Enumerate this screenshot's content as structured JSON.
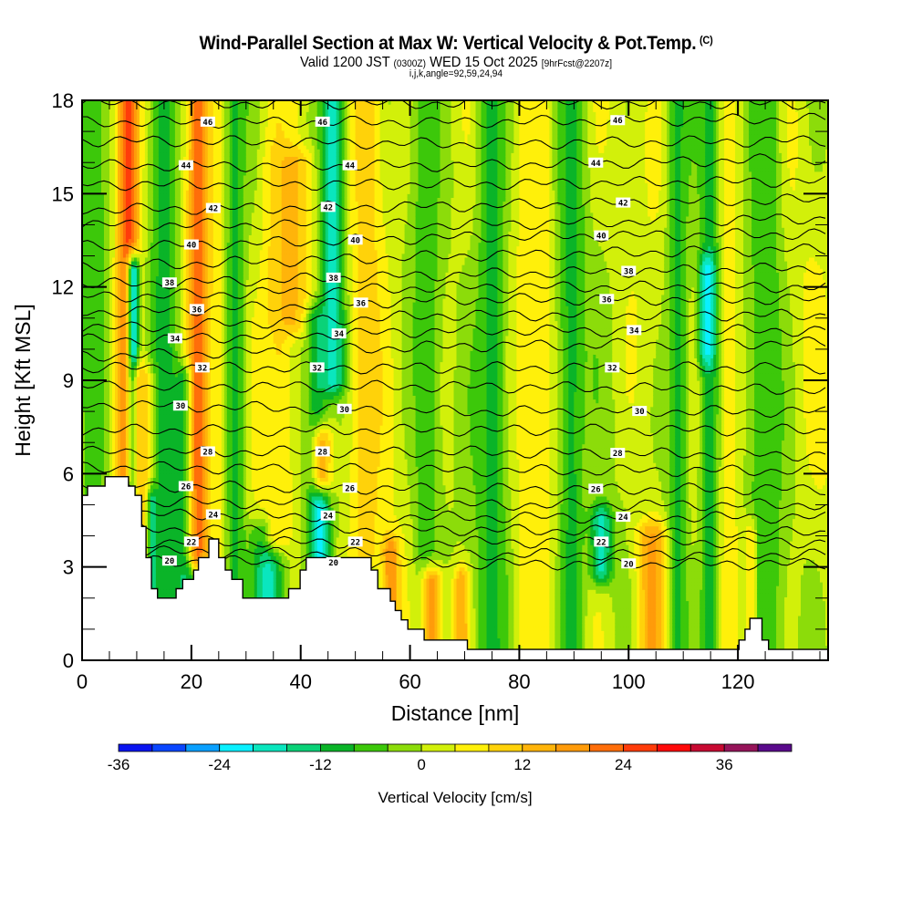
{
  "header": {
    "title": "Wind-Parallel Section at Max W: Vertical Velocity & Pot.Temp.",
    "copyright": "(C)",
    "valid_prefix": "Valid 1200 JST",
    "valid_utc": "(0300Z)",
    "valid_date": "WED 15 Oct 2025",
    "forecast": "[9hrFcst@2207z]",
    "section_params": "i,j,k,angle=92,59,24,94"
  },
  "chart_data": {
    "type": "heatmap",
    "title": "Wind-Parallel Section at Max W: Vertical Velocity & Pot.Temp.",
    "xlabel": "Distance [nm]",
    "ylabel": "Height [Kft MSL]",
    "xlim": [
      0,
      136.5
    ],
    "ylim": [
      0,
      18
    ],
    "xticks": [
      0,
      20,
      40,
      60,
      80,
      100,
      120
    ],
    "yticks": [
      0,
      3,
      6,
      9,
      12,
      15,
      18
    ],
    "x_minor_step": 5,
    "y_minor_step": 1,
    "colorbar": {
      "title": "Vertical Velocity [cm/s]",
      "levels": [
        -36,
        -32,
        -28,
        -24,
        -20,
        -16,
        -12,
        -8,
        -4,
        0,
        4,
        8,
        12,
        16,
        20,
        24,
        28,
        32,
        36,
        40,
        44
      ],
      "tick_labels": [
        "-36",
        "-24",
        "-12",
        "0",
        "12",
        "24",
        "36"
      ],
      "tick_values": [
        -36,
        -24,
        -12,
        0,
        12,
        24,
        36
      ],
      "colors": [
        "#0a14f0",
        "#0a46ff",
        "#0aa0ff",
        "#0af0ff",
        "#0ae6be",
        "#0ad278",
        "#0ab428",
        "#3cc80a",
        "#8cdc0a",
        "#d2f00a",
        "#fff00a",
        "#ffd20a",
        "#ffb40a",
        "#ff9b0a",
        "#ff6e0a",
        "#ff3c0a",
        "#ff0a0a",
        "#c80a32",
        "#96145a",
        "#5a0a8c"
      ],
      "location": "bottom"
    },
    "vertical_velocity_features": [
      {
        "x": 2,
        "w": 3.5,
        "z0": 5.5,
        "z1": 18,
        "value": -6
      },
      {
        "x": 8.5,
        "w": 2.2,
        "z0": 6,
        "z1": 18,
        "value": 26
      },
      {
        "x": 9.5,
        "w": 1.2,
        "z0": 5.5,
        "z1": 12.5,
        "value": -20
      },
      {
        "x": 11.5,
        "w": 2.5,
        "z0": 2,
        "z1": 9,
        "value": 14
      },
      {
        "x": 13,
        "w": 1,
        "z0": 2,
        "z1": 5,
        "value": -22
      },
      {
        "x": 15,
        "w": 2.5,
        "z0": 2,
        "z1": 18,
        "value": -10
      },
      {
        "x": 19,
        "w": 2,
        "z0": 2,
        "z1": 9,
        "value": -14
      },
      {
        "x": 21.5,
        "w": 2,
        "z0": 3.5,
        "z1": 18,
        "value": 26
      },
      {
        "x": 25,
        "w": 3,
        "z0": 3,
        "z1": 18,
        "value": 8
      },
      {
        "x": 28,
        "w": 2,
        "z0": 2,
        "z1": 18,
        "value": -9
      },
      {
        "x": 34,
        "w": 3,
        "z0": 2,
        "z1": 4,
        "value": -18
      },
      {
        "x": 36,
        "w": 3,
        "z0": 4,
        "z1": 18,
        "value": 8
      },
      {
        "x": 38.5,
        "w": 4,
        "z0": 11,
        "z1": 16,
        "value": 13
      },
      {
        "x": 43,
        "w": 2,
        "z0": 3.5,
        "z1": 11,
        "value": -10
      },
      {
        "x": 43.5,
        "w": 1.6,
        "z0": 3.5,
        "z1": 5,
        "value": -22
      },
      {
        "x": 44,
        "w": 2,
        "z0": 6,
        "z1": 7,
        "value": 13
      },
      {
        "x": 46,
        "w": 2.5,
        "z0": 9,
        "z1": 18,
        "value": -18
      },
      {
        "x": 52,
        "w": 3,
        "z0": 3.5,
        "z1": 18,
        "value": 10
      },
      {
        "x": 56.5,
        "w": 1.5,
        "z0": 1,
        "z1": 3.5,
        "value": 20
      },
      {
        "x": 63,
        "w": 2.5,
        "z0": 0.6,
        "z1": 18,
        "value": -7
      },
      {
        "x": 64,
        "w": 2,
        "z0": 0.3,
        "z1": 2.5,
        "value": 17
      },
      {
        "x": 69.5,
        "w": 1.5,
        "z0": 0.3,
        "z1": 2.5,
        "value": 17
      },
      {
        "x": 75,
        "w": 3,
        "z0": 0.3,
        "z1": 18,
        "value": -9
      },
      {
        "x": 83,
        "w": 3,
        "z0": 0.3,
        "z1": 18,
        "value": 8
      },
      {
        "x": 89.5,
        "w": 2.5,
        "z0": 0.3,
        "z1": 18,
        "value": -9
      },
      {
        "x": 95,
        "w": 2,
        "z0": 3,
        "z1": 4.5,
        "value": -18
      },
      {
        "x": 104.5,
        "w": 3,
        "z0": 0.3,
        "z1": 4,
        "value": 17
      },
      {
        "x": 109,
        "w": 2,
        "z0": 0.3,
        "z1": 18,
        "value": -9
      },
      {
        "x": 115,
        "w": 2,
        "z0": 0.3,
        "z1": 18,
        "value": -11
      },
      {
        "x": 114.5,
        "w": 1.5,
        "z0": 10,
        "z1": 12.5,
        "value": -22
      },
      {
        "x": 118.5,
        "w": 2,
        "z0": 0.3,
        "z1": 18,
        "value": 6
      },
      {
        "x": 123,
        "w": 1.5,
        "z0": 1,
        "z1": 4,
        "value": 22
      },
      {
        "x": 125,
        "w": 3,
        "z0": 0.3,
        "z1": 18,
        "value": -8
      }
    ],
    "potential_temperature_contours": {
      "label_levels": [
        46,
        44,
        42,
        40,
        38,
        36,
        34,
        32,
        30,
        28,
        26,
        24,
        22,
        20
      ],
      "levels": [
        {
          "theta": 47,
          "z": [
            17.9,
            17.9,
            17.9
          ]
        },
        {
          "theta": 46,
          "z": [
            17.3,
            17.3,
            17.4
          ]
        },
        {
          "theta": 45,
          "z": [
            16.7,
            16.6,
            16.7
          ]
        },
        {
          "theta": 44,
          "z": [
            15.9,
            15.9,
            16.1
          ]
        },
        {
          "theta": 43,
          "z": [
            15.3,
            15.3,
            15.4
          ]
        },
        {
          "theta": 42,
          "z": [
            14.5,
            14.6,
            14.8
          ]
        },
        {
          "theta": 41,
          "z": [
            14.0,
            14.0,
            14.2
          ]
        },
        {
          "theta": 40,
          "z": [
            13.3,
            13.6,
            13.7
          ]
        },
        {
          "theta": 39,
          "z": [
            12.7,
            13.0,
            13.2
          ]
        },
        {
          "theta": 38,
          "z": [
            12.1,
            12.4,
            12.6
          ]
        },
        {
          "theta": 37,
          "z": [
            11.7,
            12.0,
            12.0
          ]
        },
        {
          "theta": 36,
          "z": [
            11.2,
            11.6,
            11.6
          ]
        },
        {
          "theta": 35,
          "z": [
            10.7,
            11.1,
            11.1
          ]
        },
        {
          "theta": 34,
          "z": [
            10.3,
            10.6,
            10.6
          ]
        },
        {
          "theta": 33,
          "z": [
            9.8,
            10.1,
            10.2
          ]
        },
        {
          "theta": 32,
          "z": [
            9.4,
            9.4,
            9.4
          ]
        },
        {
          "theta": 31,
          "z": [
            8.8,
            8.8,
            8.7
          ]
        },
        {
          "theta": 30,
          "z": [
            8.2,
            8.0,
            8.0
          ]
        },
        {
          "theta": 29,
          "z": [
            7.4,
            7.4,
            7.4
          ]
        },
        {
          "theta": 28,
          "z": [
            6.7,
            6.7,
            6.6
          ]
        },
        {
          "theta": 27,
          "z": [
            6.2,
            6.1,
            6.1
          ]
        },
        {
          "theta": 26,
          "z": [
            5.6,
            5.5,
            5.5
          ]
        },
        {
          "theta": 25,
          "z": [
            5.1,
            5.0,
            5.0
          ]
        },
        {
          "theta": 24,
          "z": [
            4.7,
            4.6,
            4.6
          ]
        },
        {
          "theta": 23,
          "z": [
            4.2,
            4.2,
            4.1
          ]
        },
        {
          "theta": 22,
          "z": [
            3.8,
            3.8,
            3.8
          ]
        },
        {
          "theta": 21,
          "z": [
            3.5,
            3.4,
            3.4
          ]
        },
        {
          "theta": 20,
          "z": [
            3.2,
            3.1,
            3.1
          ]
        }
      ],
      "z_sample_x": [
        10,
        68,
        130
      ]
    },
    "terrain_profile": {
      "x": [
        0,
        1,
        1,
        4.2,
        4.2,
        8.5,
        8.5,
        9.7,
        9.7,
        10.9,
        10.9,
        11.7,
        11.7,
        12.7,
        12.7,
        13.8,
        13.8,
        14,
        14,
        17.2,
        17.2,
        18.4,
        18.4,
        20.4,
        20.4,
        21.3,
        21.3,
        23.2,
        23.2,
        25,
        25,
        26.2,
        26.2,
        27.4,
        27.4,
        29.4,
        29.4,
        37.8,
        37.8,
        39.9,
        39.9,
        41,
        41,
        43.1,
        43.1,
        52.9,
        52.9,
        54.1,
        54.1,
        56.4,
        56.4,
        57.3,
        57.3,
        58.4,
        58.4,
        59.6,
        59.6,
        62.6,
        62.6,
        70.5,
        70.5,
        120.2,
        120.2,
        121.3,
        121.3,
        122.2,
        122.2,
        124.4,
        124.4,
        125.6,
        125.6,
        136.5
      ],
      "z": [
        5.3,
        5.3,
        5.6,
        5.6,
        5.9,
        5.9,
        5.6,
        5.6,
        5.3,
        5.3,
        4.3,
        4.3,
        3.3,
        3.3,
        2.3,
        2.3,
        2.0,
        2.0,
        2.0,
        2.0,
        2.3,
        2.3,
        2.6,
        2.6,
        2.9,
        2.9,
        3.3,
        3.3,
        3.9,
        3.9,
        3.3,
        3.3,
        2.9,
        2.9,
        2.6,
        2.6,
        2.0,
        2.0,
        2.3,
        2.3,
        2.9,
        2.9,
        3.3,
        3.3,
        3.3,
        3.3,
        2.9,
        2.9,
        2.3,
        2.3,
        1.9,
        1.9,
        1.6,
        1.6,
        1.3,
        1.3,
        1.0,
        1.0,
        0.65,
        0.65,
        0.35,
        0.35,
        0.65,
        0.65,
        1.0,
        1.0,
        1.35,
        1.35,
        0.65,
        0.65,
        0.35,
        0.35
      ]
    }
  }
}
